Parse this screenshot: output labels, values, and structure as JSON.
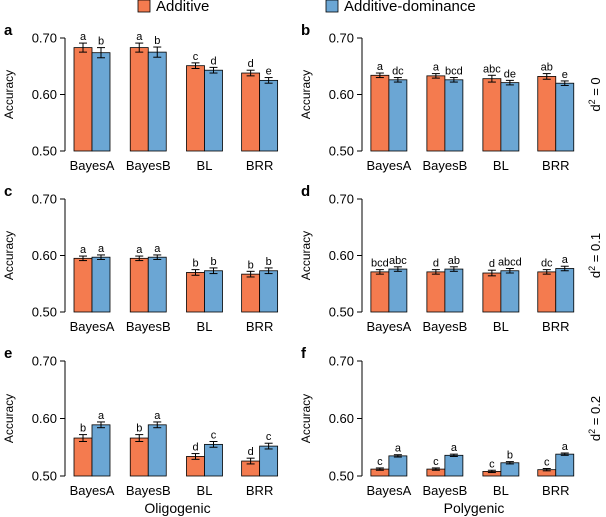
{
  "legend": {
    "items": [
      {
        "label": "Additive",
        "color": "#f47b4f"
      },
      {
        "label": "Additive-dominance",
        "color": "#6ba6d4"
      }
    ]
  },
  "columns": [
    "Oligogenic",
    "Polygenic"
  ],
  "rows": [
    "d2 = 0",
    "d2 = 0.1",
    "d2 = 0.2"
  ],
  "colors": {
    "additive": "#f47b4f",
    "dominance": "#6ba6d4",
    "axis": "#000000"
  },
  "chart_data": [
    {
      "panel": "a",
      "type": "bar",
      "ylabel": "Accuracy",
      "ylim": [
        0.5,
        0.7
      ],
      "yticks": [
        "0.50",
        "0.60",
        "0.70"
      ],
      "categories": [
        "BayesA",
        "BayesB",
        "BL",
        "BRR"
      ],
      "series": [
        {
          "name": "Additive",
          "values": [
            0.683,
            0.683,
            0.651,
            0.638
          ],
          "errors": [
            0.008,
            0.008,
            0.005,
            0.005
          ],
          "letters": [
            "a",
            "a",
            "c",
            "d"
          ]
        },
        {
          "name": "Additive-dominance",
          "values": [
            0.674,
            0.675,
            0.643,
            0.625
          ],
          "errors": [
            0.009,
            0.009,
            0.005,
            0.005
          ],
          "letters": [
            "b",
            "b",
            "d",
            "e"
          ]
        }
      ]
    },
    {
      "panel": "b",
      "type": "bar",
      "ylabel": "Accuracy",
      "ylim": [
        0.5,
        0.7
      ],
      "yticks": [
        "0.50",
        "0.60",
        "0.70"
      ],
      "categories": [
        "BayesA",
        "BayesB",
        "BL",
        "BRR"
      ],
      "side_label": "d2 = 0",
      "series": [
        {
          "name": "Additive",
          "values": [
            0.634,
            0.633,
            0.628,
            0.632
          ],
          "errors": [
            0.004,
            0.004,
            0.006,
            0.005
          ],
          "letters": [
            "a",
            "a",
            "abc",
            "ab"
          ]
        },
        {
          "name": "Additive-dominance",
          "values": [
            0.626,
            0.626,
            0.621,
            0.62
          ],
          "errors": [
            0.004,
            0.004,
            0.004,
            0.004
          ],
          "letters": [
            "dc",
            "bcd",
            "de",
            "e"
          ]
        }
      ]
    },
    {
      "panel": "c",
      "type": "bar",
      "ylabel": "Accuracy",
      "ylim": [
        0.5,
        0.7
      ],
      "yticks": [
        "0.50",
        "0.60",
        "0.70"
      ],
      "categories": [
        "BayesA",
        "BayesB",
        "BL",
        "BRR"
      ],
      "series": [
        {
          "name": "Additive",
          "values": [
            0.595,
            0.595,
            0.57,
            0.567
          ],
          "errors": [
            0.004,
            0.004,
            0.005,
            0.005
          ],
          "letters": [
            "a",
            "a",
            "b",
            "b"
          ]
        },
        {
          "name": "Additive-dominance",
          "values": [
            0.597,
            0.597,
            0.573,
            0.573
          ],
          "errors": [
            0.004,
            0.004,
            0.005,
            0.005
          ],
          "letters": [
            "a",
            "a",
            "b",
            "b"
          ]
        }
      ]
    },
    {
      "panel": "d",
      "type": "bar",
      "ylabel": "Accuracy",
      "ylim": [
        0.5,
        0.7
      ],
      "yticks": [
        "0.50",
        "0.60",
        "0.70"
      ],
      "categories": [
        "BayesA",
        "BayesB",
        "BL",
        "BRR"
      ],
      "side_label": "d2 = 0.1",
      "series": [
        {
          "name": "Additive",
          "values": [
            0.571,
            0.571,
            0.569,
            0.571
          ],
          "errors": [
            0.004,
            0.004,
            0.005,
            0.004
          ],
          "letters": [
            "bcd",
            "d",
            "d",
            "dc"
          ]
        },
        {
          "name": "Additive-dominance",
          "values": [
            0.576,
            0.576,
            0.573,
            0.577
          ],
          "errors": [
            0.004,
            0.004,
            0.004,
            0.004
          ],
          "letters": [
            "abc",
            "ab",
            "abcd",
            "a"
          ]
        }
      ]
    },
    {
      "panel": "e",
      "type": "bar",
      "ylabel": "Accuracy",
      "ylim": [
        0.5,
        0.7
      ],
      "yticks": [
        "0.50",
        "0.60",
        "0.70"
      ],
      "categories": [
        "BayesA",
        "BayesB",
        "BL",
        "BRR"
      ],
      "xlabel": "Oligogenic",
      "series": [
        {
          "name": "Additive",
          "values": [
            0.566,
            0.566,
            0.534,
            0.526
          ],
          "errors": [
            0.006,
            0.006,
            0.005,
            0.005
          ],
          "letters": [
            "b",
            "b",
            "d",
            "d"
          ]
        },
        {
          "name": "Additive-dominance",
          "values": [
            0.589,
            0.589,
            0.555,
            0.552
          ],
          "errors": [
            0.005,
            0.005,
            0.005,
            0.005
          ],
          "letters": [
            "a",
            "a",
            "c",
            "c"
          ]
        }
      ]
    },
    {
      "panel": "f",
      "type": "bar",
      "ylabel": "Accuracy",
      "ylim": [
        0.5,
        0.7
      ],
      "yticks": [
        "0.50",
        "0.60",
        "0.70"
      ],
      "categories": [
        "BayesA",
        "BayesB",
        "BL",
        "BRR"
      ],
      "xlabel": "Polygenic",
      "side_label": "d2 = 0.2",
      "series": [
        {
          "name": "Additive",
          "values": [
            0.512,
            0.512,
            0.508,
            0.511
          ],
          "errors": [
            0.002,
            0.002,
            0.002,
            0.002
          ],
          "letters": [
            "c",
            "c",
            "c",
            "c"
          ]
        },
        {
          "name": "Additive-dominance",
          "values": [
            0.535,
            0.536,
            0.523,
            0.538
          ],
          "errors": [
            0.002,
            0.002,
            0.002,
            0.002
          ],
          "letters": [
            "a",
            "a",
            "b",
            "a"
          ]
        }
      ]
    }
  ]
}
